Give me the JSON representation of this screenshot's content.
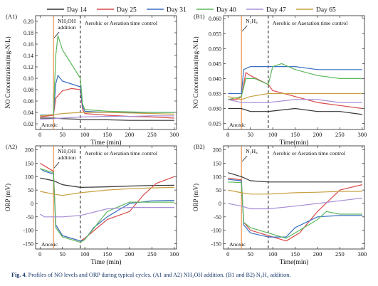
{
  "legend": [
    {
      "name": "Day 14",
      "color": "#333333"
    },
    {
      "name": "Day 25",
      "color": "#d84a4a"
    },
    {
      "name": "Day 31",
      "color": "#3a6fc4"
    },
    {
      "name": "Day 40",
      "color": "#5db85d"
    },
    {
      "name": "Day 47",
      "color": "#a78fd6"
    },
    {
      "name": "Day 65",
      "color": "#c8a040"
    }
  ],
  "caption": {
    "prefix": "Fig. 4.",
    "text": "Profiles of NO levels and ORP during typical cycles. (A1 and A2) NH₂OH addition. (B1 and B2) N₂H₄ addition."
  },
  "chart_data": [
    {
      "type": "line",
      "panel": "(A1)",
      "ylabel": "NO Concentration(mg-N/L)",
      "xlabel": "Time (min)",
      "xlim": [
        -10,
        305
      ],
      "ylim": [
        0.01,
        0.21
      ],
      "xticks": [
        0,
        50,
        100,
        150,
        200,
        250,
        300
      ],
      "yticks": [
        0.02,
        0.04,
        0.06,
        0.08,
        0.1,
        0.12,
        0.14,
        0.16,
        0.18,
        0.2
      ],
      "ytick_labels": [
        "0.02",
        "0.04",
        "0.06",
        "0.08",
        "0.10",
        "0.12",
        "0.14",
        "0.16",
        "0.18",
        "0.20"
      ],
      "addition_x": 30,
      "control_x": 90,
      "annotations": {
        "addition": "NH₂OH addition",
        "control": "Aerobic or Aeration time control",
        "anoxic": "Anoxic"
      },
      "series": [
        {
          "name": "Day 14",
          "x": [
            0,
            30,
            50,
            90,
            95,
            150,
            200,
            250,
            300
          ],
          "y": [
            0.03,
            0.03,
            0.029,
            0.028,
            0.027,
            0.027,
            0.026,
            0.026,
            0.026
          ]
        },
        {
          "name": "Day 25",
          "x": [
            0,
            30,
            35,
            50,
            70,
            90,
            95,
            100,
            150,
            200,
            250,
            300
          ],
          "y": [
            0.032,
            0.035,
            0.065,
            0.078,
            0.082,
            0.08,
            0.045,
            0.038,
            0.035,
            0.033,
            0.032,
            0.03
          ]
        },
        {
          "name": "Day 31",
          "x": [
            0,
            30,
            35,
            40,
            50,
            70,
            90,
            95,
            100,
            150,
            200,
            250,
            300
          ],
          "y": [
            0.035,
            0.036,
            0.09,
            0.105,
            0.095,
            0.09,
            0.085,
            0.05,
            0.042,
            0.04,
            0.04,
            0.04,
            0.04
          ]
        },
        {
          "name": "Day 40",
          "x": [
            0,
            30,
            35,
            40,
            50,
            70,
            90,
            95,
            100,
            150,
            200,
            250,
            300
          ],
          "y": [
            0.034,
            0.036,
            0.14,
            0.175,
            0.15,
            0.125,
            0.1,
            0.055,
            0.045,
            0.042,
            0.041,
            0.04,
            0.04
          ]
        },
        {
          "name": "Day 47",
          "x": [
            0,
            30,
            50,
            90,
            150,
            200,
            250,
            300
          ],
          "y": [
            0.028,
            0.029,
            0.03,
            0.032,
            0.033,
            0.033,
            0.034,
            0.034
          ]
        },
        {
          "name": "Day 65",
          "x": [
            0,
            30,
            50,
            90,
            150,
            200,
            250,
            300
          ],
          "y": [
            0.034,
            0.036,
            0.038,
            0.04,
            0.04,
            0.039,
            0.038,
            0.037
          ]
        }
      ]
    },
    {
      "type": "line",
      "panel": "(B1)",
      "ylabel": "NO Concentration(mg-N/L)",
      "xlabel": "Time(min)",
      "xlim": [
        -10,
        305
      ],
      "ylim": [
        0.023,
        0.061
      ],
      "xticks": [
        0,
        50,
        100,
        150,
        200,
        250,
        300
      ],
      "yticks": [
        0.025,
        0.03,
        0.035,
        0.04,
        0.045,
        0.05,
        0.055,
        0.06
      ],
      "ytick_labels": [
        "0.025",
        "0.030",
        "0.035",
        "0.040",
        "0.045",
        "0.050",
        "0.055",
        "0.060"
      ],
      "addition_x": 30,
      "control_x": 90,
      "annotations": {
        "addition": "N₂H₄",
        "control": "Aerobic or Aaeration time control",
        "anoxic": "Anoxic"
      },
      "series": [
        {
          "name": "Day 14",
          "x": [
            0,
            30,
            50,
            90,
            150,
            200,
            250,
            300
          ],
          "y": [
            0.03,
            0.03,
            0.029,
            0.029,
            0.03,
            0.029,
            0.029,
            0.028
          ]
        },
        {
          "name": "Day 25",
          "x": [
            0,
            20,
            30,
            40,
            50,
            90,
            100,
            150,
            200,
            250,
            300
          ],
          "y": [
            0.033,
            0.033,
            0.034,
            0.042,
            0.041,
            0.038,
            0.036,
            0.034,
            0.032,
            0.031,
            0.03
          ]
        },
        {
          "name": "Day 31",
          "x": [
            0,
            30,
            35,
            50,
            90,
            100,
            150,
            200,
            250,
            300
          ],
          "y": [
            0.035,
            0.035,
            0.043,
            0.044,
            0.044,
            0.044,
            0.044,
            0.043,
            0.043,
            0.043
          ]
        },
        {
          "name": "Day 40",
          "x": [
            0,
            30,
            40,
            60,
            90,
            100,
            120,
            150,
            200,
            250,
            300
          ],
          "y": [
            0.033,
            0.034,
            0.04,
            0.04,
            0.038,
            0.044,
            0.045,
            0.043,
            0.041,
            0.04,
            0.04
          ]
        },
        {
          "name": "Day 47",
          "x": [
            0,
            30,
            50,
            90,
            150,
            200,
            250,
            300
          ],
          "y": [
            0.033,
            0.032,
            0.032,
            0.032,
            0.033,
            0.033,
            0.032,
            0.032
          ]
        },
        {
          "name": "Day 65",
          "x": [
            0,
            30,
            50,
            90,
            150,
            200,
            250,
            300
          ],
          "y": [
            0.034,
            0.033,
            0.034,
            0.035,
            0.035,
            0.035,
            0.035,
            0.035
          ]
        }
      ]
    },
    {
      "type": "line",
      "panel": "(A2)",
      "ylabel": "ORP (mV)",
      "xlabel": "Time (min)",
      "xlim": [
        -10,
        305
      ],
      "ylim": [
        -170,
        215
      ],
      "xticks": [
        0,
        50,
        100,
        150,
        200,
        250,
        300
      ],
      "yticks": [
        -150,
        -100,
        -50,
        0,
        50,
        100,
        150,
        200
      ],
      "ytick_labels": [
        "-150",
        "-100",
        "-50",
        "0",
        "50",
        "100",
        "150",
        "200"
      ],
      "addition_x": 30,
      "control_x": 90,
      "annotations": {
        "addition": "NH₂OH addition",
        "control": "Aerobic or Aeration time control",
        "anoxic": "Anoxic"
      },
      "series": [
        {
          "name": "Day 14",
          "x": [
            0,
            30,
            50,
            90,
            150,
            200,
            250,
            300
          ],
          "y": [
            95,
            85,
            70,
            60,
            62,
            65,
            67,
            68
          ]
        },
        {
          "name": "Day 25",
          "x": [
            0,
            10,
            30,
            35,
            50,
            90,
            100,
            150,
            200,
            230,
            260,
            300
          ],
          "y": [
            150,
            140,
            120,
            -80,
            -120,
            -140,
            -130,
            -60,
            -30,
            30,
            75,
            100
          ]
        },
        {
          "name": "Day 31",
          "x": [
            0,
            10,
            30,
            35,
            50,
            90,
            100,
            120,
            150,
            200,
            250,
            300
          ],
          "y": [
            130,
            120,
            110,
            -80,
            -120,
            -140,
            -135,
            -90,
            -50,
            0,
            10,
            12
          ]
        },
        {
          "name": "Day 40",
          "x": [
            0,
            10,
            30,
            35,
            50,
            90,
            100,
            150,
            200,
            250,
            300
          ],
          "y": [
            130,
            125,
            115,
            -90,
            -125,
            -145,
            -135,
            -30,
            5,
            5,
            5
          ]
        },
        {
          "name": "Day 47",
          "x": [
            0,
            10,
            30,
            50,
            90,
            150,
            200,
            250,
            300
          ],
          "y": [
            -40,
            -50,
            -50,
            -50,
            -45,
            -20,
            -15,
            -15,
            -15
          ]
        },
        {
          "name": "Day 65",
          "x": [
            0,
            30,
            50,
            90,
            150,
            200,
            250,
            300
          ],
          "y": [
            45,
            35,
            30,
            40,
            50,
            55,
            58,
            60
          ]
        }
      ]
    },
    {
      "type": "line",
      "panel": "(B2)",
      "ylabel": "ORP (mV)",
      "xlabel": "Time(min)",
      "xlim": [
        -10,
        305
      ],
      "ylim": [
        -170,
        215
      ],
      "xticks": [
        0,
        50,
        100,
        150,
        200,
        250,
        300
      ],
      "yticks": [
        -150,
        -100,
        -50,
        0,
        50,
        100,
        150,
        200
      ],
      "ytick_labels": [
        "-150",
        "-100",
        "-50",
        "0",
        "50",
        "100",
        "150",
        "200"
      ],
      "addition_x": 30,
      "control_x": 90,
      "annotations": {
        "addition": "N₂H₄",
        "control": "Aerobic or  Aeration time control",
        "anoxic": "Anoxic"
      },
      "series": [
        {
          "name": "Day 14",
          "x": [
            0,
            30,
            50,
            90,
            150,
            200,
            250,
            300
          ],
          "y": [
            115,
            100,
            85,
            80,
            80,
            80,
            80,
            80
          ]
        },
        {
          "name": "Day 25",
          "x": [
            0,
            30,
            35,
            50,
            90,
            130,
            160,
            200,
            250,
            300
          ],
          "y": [
            95,
            88,
            -70,
            -100,
            -120,
            -140,
            -110,
            -30,
            50,
            70
          ]
        },
        {
          "name": "Day 31",
          "x": [
            0,
            30,
            35,
            50,
            90,
            130,
            150,
            200,
            250,
            300
          ],
          "y": [
            90,
            85,
            -80,
            -110,
            -125,
            -125,
            -90,
            -50,
            -45,
            -45
          ]
        },
        {
          "name": "Day 40",
          "x": [
            0,
            30,
            35,
            50,
            90,
            130,
            160,
            200,
            220,
            250,
            300
          ],
          "y": [
            80,
            78,
            -70,
            -90,
            -110,
            -130,
            -100,
            -60,
            -30,
            -40,
            -40
          ]
        },
        {
          "name": "Day 47",
          "x": [
            0,
            30,
            50,
            90,
            150,
            200,
            250,
            300
          ],
          "y": [
            0,
            -10,
            -20,
            -20,
            -10,
            0,
            10,
            20
          ]
        },
        {
          "name": "Day 65",
          "x": [
            0,
            30,
            50,
            90,
            150,
            200,
            250,
            300
          ],
          "y": [
            50,
            40,
            35,
            35,
            40,
            42,
            45,
            45
          ]
        }
      ]
    }
  ]
}
